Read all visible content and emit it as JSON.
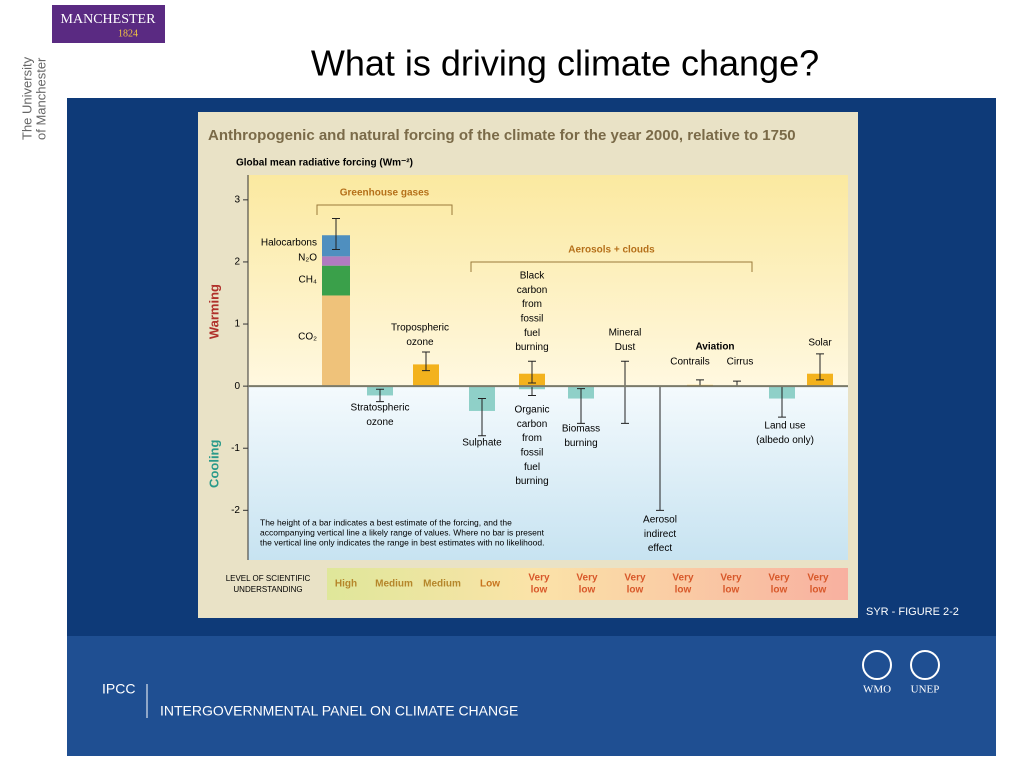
{
  "header": {
    "logo": "MANCHESTER",
    "logo_year": "1824",
    "university": [
      "The University",
      "of Manchester"
    ],
    "title": "What is driving climate change?"
  },
  "chart_data": {
    "type": "bar",
    "title": "Anthropogenic and natural forcing of the climate for the year 2000, relative to 1750",
    "ylabel": "Global mean radiative forcing (Wm⁻²)",
    "ylim": [
      -2.8,
      3.4
    ],
    "yticks": [
      -2,
      -1,
      0,
      1,
      2,
      3
    ],
    "warming_label": "Warming",
    "cooling_label": "Cooling",
    "groups": [
      "Greenhouse gases",
      "Aerosols + clouds"
    ],
    "aviation_label": "Aviation",
    "stack": {
      "series": [
        {
          "name": "CO₂",
          "value": 1.46,
          "color": "#efc27a"
        },
        {
          "name": "CH₄",
          "value": 0.48,
          "color": "#3aa04a"
        },
        {
          "name": "N₂O",
          "value": 0.15,
          "color": "#b07bc0"
        },
        {
          "name": "Halocarbons",
          "value": 0.34,
          "color": "#4f8fbf"
        }
      ],
      "range": [
        2.2,
        2.7
      ]
    },
    "bars": [
      {
        "label": [
          "Stratospheric",
          "ozone"
        ],
        "value": -0.15,
        "range": [
          -0.25,
          -0.05
        ],
        "color": "#8fd0c8"
      },
      {
        "label": [
          "Tropospheric",
          "ozone"
        ],
        "value": 0.35,
        "range": [
          0.25,
          0.55
        ],
        "color": "#f3b21d"
      },
      {
        "label": [
          "Sulphate"
        ],
        "value": -0.4,
        "range": [
          -0.8,
          -0.2
        ],
        "color": "#8fd0c8"
      },
      {
        "label": [
          "Black",
          "carbon",
          "from",
          "fossil",
          "fuel",
          "burning"
        ],
        "value": 0.2,
        "range": [
          0.05,
          0.4
        ],
        "color": "#f3b21d"
      },
      {
        "label": [
          "Organic",
          "carbon",
          "from",
          "fossil",
          "fuel",
          "burning"
        ],
        "value": -0.05,
        "range": [
          -0.15,
          0.0
        ],
        "color": "#8fd0c8"
      },
      {
        "label": [
          "Biomass",
          "burning"
        ],
        "value": -0.2,
        "range": [
          -0.6,
          -0.04
        ],
        "color": "#8fd0c8"
      },
      {
        "label": [
          "Mineral",
          "Dust"
        ],
        "value": null,
        "range": [
          -0.6,
          0.4
        ],
        "color": "#8fd0c8"
      },
      {
        "label": [
          "Aerosol",
          "indirect",
          "effect"
        ],
        "value": null,
        "range": [
          -2.0,
          0.0
        ],
        "color": "#8fd0c8"
      },
      {
        "label": [
          "Contrails"
        ],
        "value": 0.02,
        "range": [
          0.0,
          0.1
        ],
        "color": "#f3b21d"
      },
      {
        "label": [
          "Cirrus"
        ],
        "value": null,
        "range": [
          0.0,
          0.08
        ],
        "color": "#f3b21d"
      },
      {
        "label": [
          "Land use",
          "(albedo only)"
        ],
        "value": -0.2,
        "range": [
          -0.5,
          0.0
        ],
        "color": "#8fd0c8"
      },
      {
        "label": [
          "Solar"
        ],
        "value": 0.2,
        "range": [
          0.1,
          0.52
        ],
        "color": "#f3b21d"
      }
    ],
    "note": [
      "The height of a bar indicates a best estimate of the forcing, and the",
      "accompanying vertical line a likely range of values.  Where no bar is present",
      "the vertical line only indicates the range in best estimates with no likelihood."
    ],
    "understanding_label": [
      "LEVEL OF SCIENTIFIC",
      "UNDERSTANDING"
    ],
    "understanding": [
      {
        "text": [
          "High"
        ],
        "color": "#b5862a"
      },
      {
        "text": [
          "Medium"
        ],
        "color": "#b5862a"
      },
      {
        "text": [
          "Medium"
        ],
        "color": "#b5862a"
      },
      {
        "text": [
          "Low"
        ],
        "color": "#c8741e"
      },
      {
        "text": [
          "Very",
          "low"
        ],
        "color": "#d8582a"
      },
      {
        "text": [
          "Very",
          "low"
        ],
        "color": "#d8582a"
      },
      {
        "text": [
          "Very",
          "low"
        ],
        "color": "#d8582a"
      },
      {
        "text": [
          "Very",
          "low"
        ],
        "color": "#d8582a"
      },
      {
        "text": [
          "Very",
          "low"
        ],
        "color": "#d8582a"
      },
      {
        "text": [
          "Very",
          "low"
        ],
        "color": "#d8582a"
      },
      {
        "text": [
          "Very",
          "low"
        ],
        "color": "#d8582a"
      }
    ],
    "source": "SYR - FIGURE 2-2"
  },
  "footer": {
    "acronym": "IPCC",
    "name": "INTERGOVERNMENTAL PANEL ON CLIMATE CHANGE",
    "logos": [
      "WMO",
      "UNEP"
    ]
  }
}
